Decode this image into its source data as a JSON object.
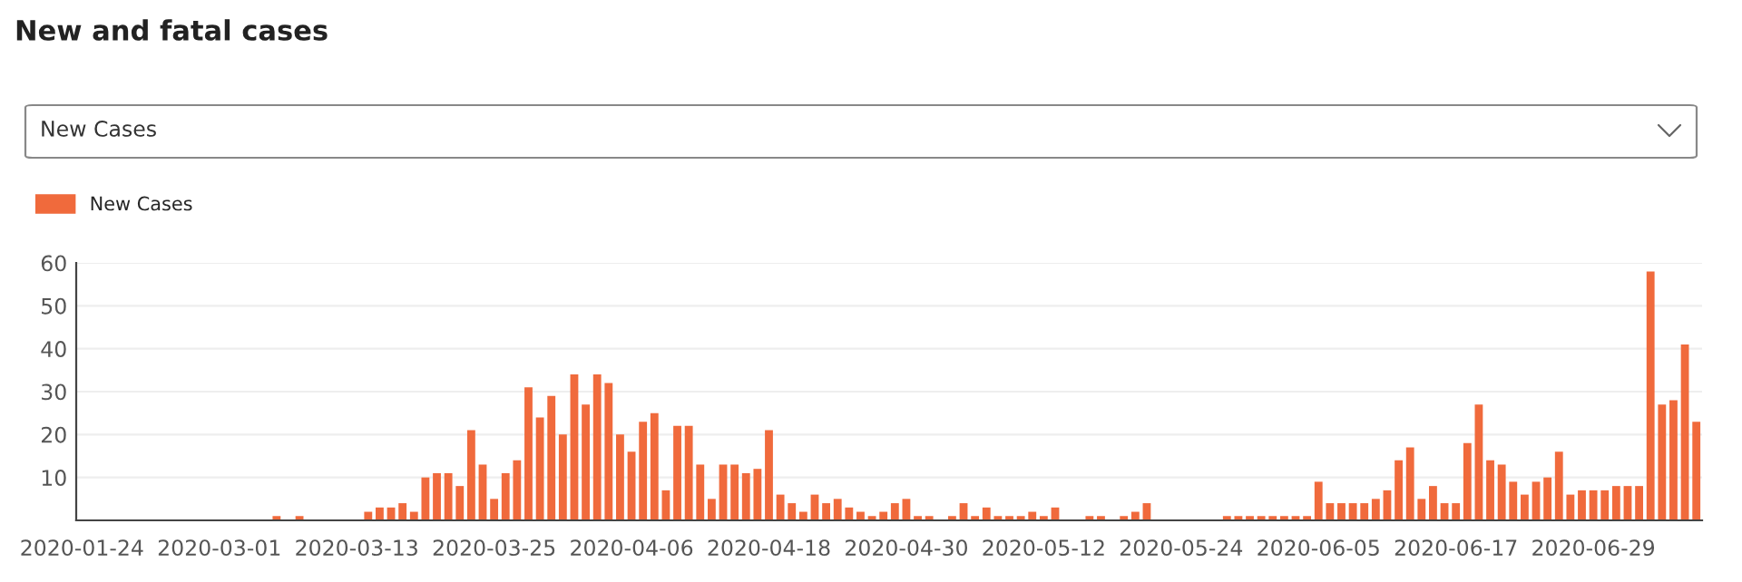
{
  "chart_data": {
    "type": "bar",
    "title": "New and fatal cases",
    "annotations": [
      "New Cases"
    ],
    "categories": [
      "2020-01-24",
      null,
      null,
      null,
      null,
      null,
      null,
      null,
      null,
      null,
      null,
      null,
      "2020-03-01",
      null,
      null,
      null,
      null,
      null,
      null,
      null,
      null,
      null,
      null,
      null,
      "2020-03-13",
      null,
      null,
      null,
      null,
      null,
      null,
      null,
      null,
      null,
      null,
      null,
      "2020-03-25",
      null,
      null,
      null,
      null,
      null,
      null,
      null,
      null,
      null,
      null,
      null,
      "2020-04-06",
      null,
      null,
      null,
      null,
      null,
      null,
      null,
      null,
      null,
      null,
      null,
      "2020-04-18",
      null,
      null,
      null,
      null,
      null,
      null,
      null,
      null,
      null,
      null,
      null,
      "2020-04-30",
      null,
      null,
      null,
      null,
      null,
      null,
      null,
      null,
      null,
      null,
      null,
      "2020-05-12",
      null,
      null,
      null,
      null,
      null,
      null,
      null,
      null,
      null,
      null,
      null,
      "2020-05-24",
      null,
      null,
      null,
      null,
      null,
      null,
      null,
      null,
      null,
      null,
      null,
      "2020-06-05",
      null,
      null,
      null,
      null,
      null,
      null,
      null,
      null,
      null,
      null,
      null,
      "2020-06-17",
      null,
      null,
      null,
      null,
      null,
      null,
      null,
      null,
      null,
      null,
      null,
      "2020-06-29",
      null,
      null,
      null,
      null,
      null,
      null,
      null,
      null,
      null
    ],
    "series": [
      {
        "name": "New Cases",
        "color": "#f06a3c",
        "values": [
          0,
          0,
          0,
          0,
          0,
          0,
          0,
          0,
          0,
          0,
          0,
          0,
          0,
          0,
          0,
          0,
          0,
          1,
          0,
          1,
          0,
          0,
          0,
          0,
          0,
          2,
          3,
          3,
          4,
          2,
          10,
          11,
          11,
          8,
          21,
          13,
          5,
          11,
          14,
          31,
          24,
          29,
          20,
          34,
          27,
          34,
          32,
          20,
          16,
          23,
          25,
          7,
          22,
          22,
          13,
          5,
          13,
          13,
          11,
          12,
          21,
          6,
          4,
          2,
          6,
          4,
          5,
          3,
          2,
          1,
          2,
          4,
          5,
          1,
          1,
          0,
          1,
          4,
          1,
          3,
          1,
          1,
          1,
          2,
          1,
          3,
          0,
          0,
          1,
          1,
          0,
          1,
          2,
          4,
          0,
          0,
          0,
          0,
          0,
          0,
          1,
          1,
          1,
          1,
          1,
          1,
          1,
          1,
          9,
          4,
          4,
          4,
          4,
          5,
          7,
          14,
          17,
          5,
          8,
          4,
          4,
          18,
          27,
          14,
          13,
          9,
          6,
          9,
          10,
          16,
          6,
          7,
          7,
          7,
          8,
          8,
          8,
          58,
          27,
          28,
          41,
          23
        ]
      }
    ],
    "ylim": [
      0,
      60
    ],
    "yticks": [
      10,
      20,
      30,
      40,
      50,
      60
    ],
    "grid": "y",
    "legend": "top left"
  }
}
